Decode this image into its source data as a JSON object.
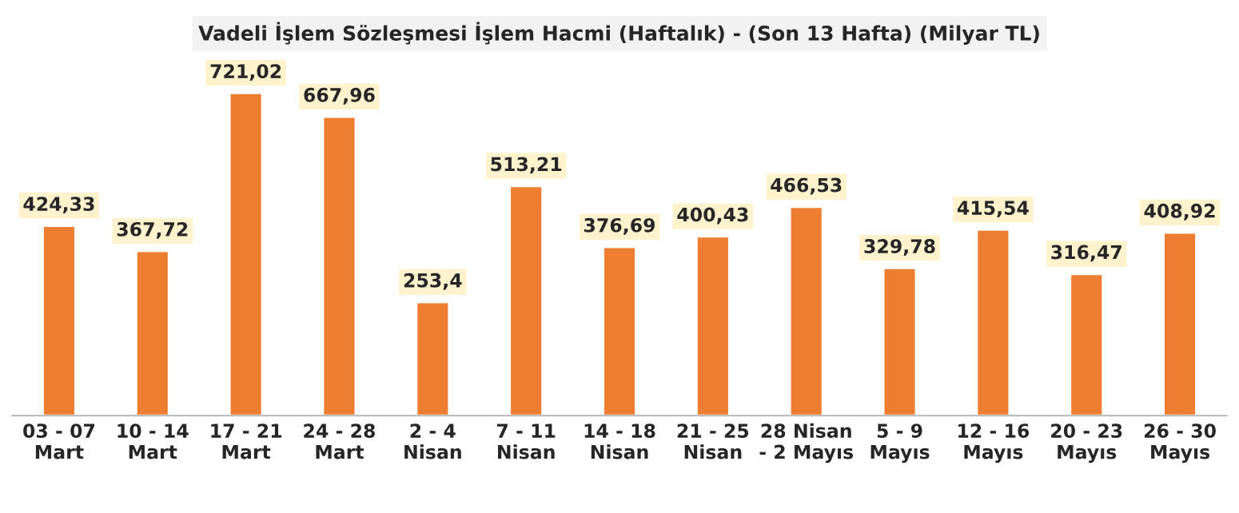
{
  "chart_data": {
    "type": "bar",
    "title": "Vadeli İşlem Sözleşmesi İşlem Hacmi (Haftalık) - (Son 13 Hafta) (Milyar TL)",
    "categories": [
      "03 - 07\nMart",
      "10 - 14\nMart",
      "17 - 21\nMart",
      "24 - 28\nMart",
      "2 - 4\nNisan",
      "7 - 11\nNisan",
      "14 - 18\nNisan",
      "21 - 25\nNisan",
      "28 Nisan\n- 2 Mayıs",
      "5 - 9\nMayıs",
      "12 - 16\nMayıs",
      "20 - 23\nMayıs",
      "26 - 30\nMayıs"
    ],
    "values": [
      424.33,
      367.72,
      721.02,
      667.96,
      253.4,
      513.21,
      376.69,
      400.43,
      466.53,
      329.78,
      415.54,
      316.47,
      408.92
    ],
    "value_labels": [
      "424,33",
      "367,72",
      "721,02",
      "667,96",
      "253,4",
      "513,21",
      "376,69",
      "400,43",
      "466,53",
      "329,78",
      "415,54",
      "316,47",
      "408,92"
    ],
    "color": "#ed7d31",
    "grid": false,
    "legend": false,
    "tick_labels": "x"
  }
}
